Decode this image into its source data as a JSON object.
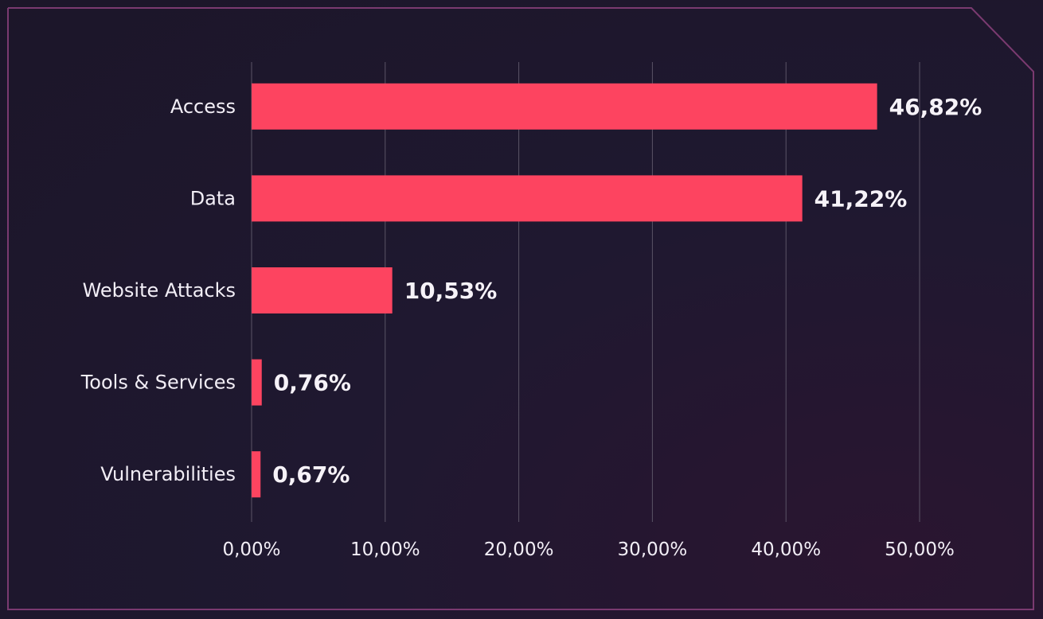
{
  "chart_data": {
    "type": "bar",
    "orientation": "horizontal",
    "categories": [
      "Access",
      "Data",
      "Website Attacks",
      "Tools & Services",
      "Vulnerabilities"
    ],
    "values": [
      46.82,
      41.22,
      10.53,
      0.76,
      0.67
    ],
    "value_labels": [
      "46,82%",
      "41,22%",
      "10,53%",
      "0,76%",
      "0,67%"
    ],
    "x_ticks": [
      0,
      10,
      20,
      30,
      40,
      50
    ],
    "x_tick_labels": [
      "0,00%",
      "10,00%",
      "20,00%",
      "30,00%",
      "40,00%",
      "50,00%"
    ],
    "xlim": [
      0,
      50
    ],
    "grid": "vertical",
    "title": "",
    "xlabel": "",
    "ylabel": "",
    "colors": {
      "bar": "#fd4460",
      "grid": "#5b5466",
      "border": "#7a3a70",
      "text": "#f2eef6"
    }
  }
}
